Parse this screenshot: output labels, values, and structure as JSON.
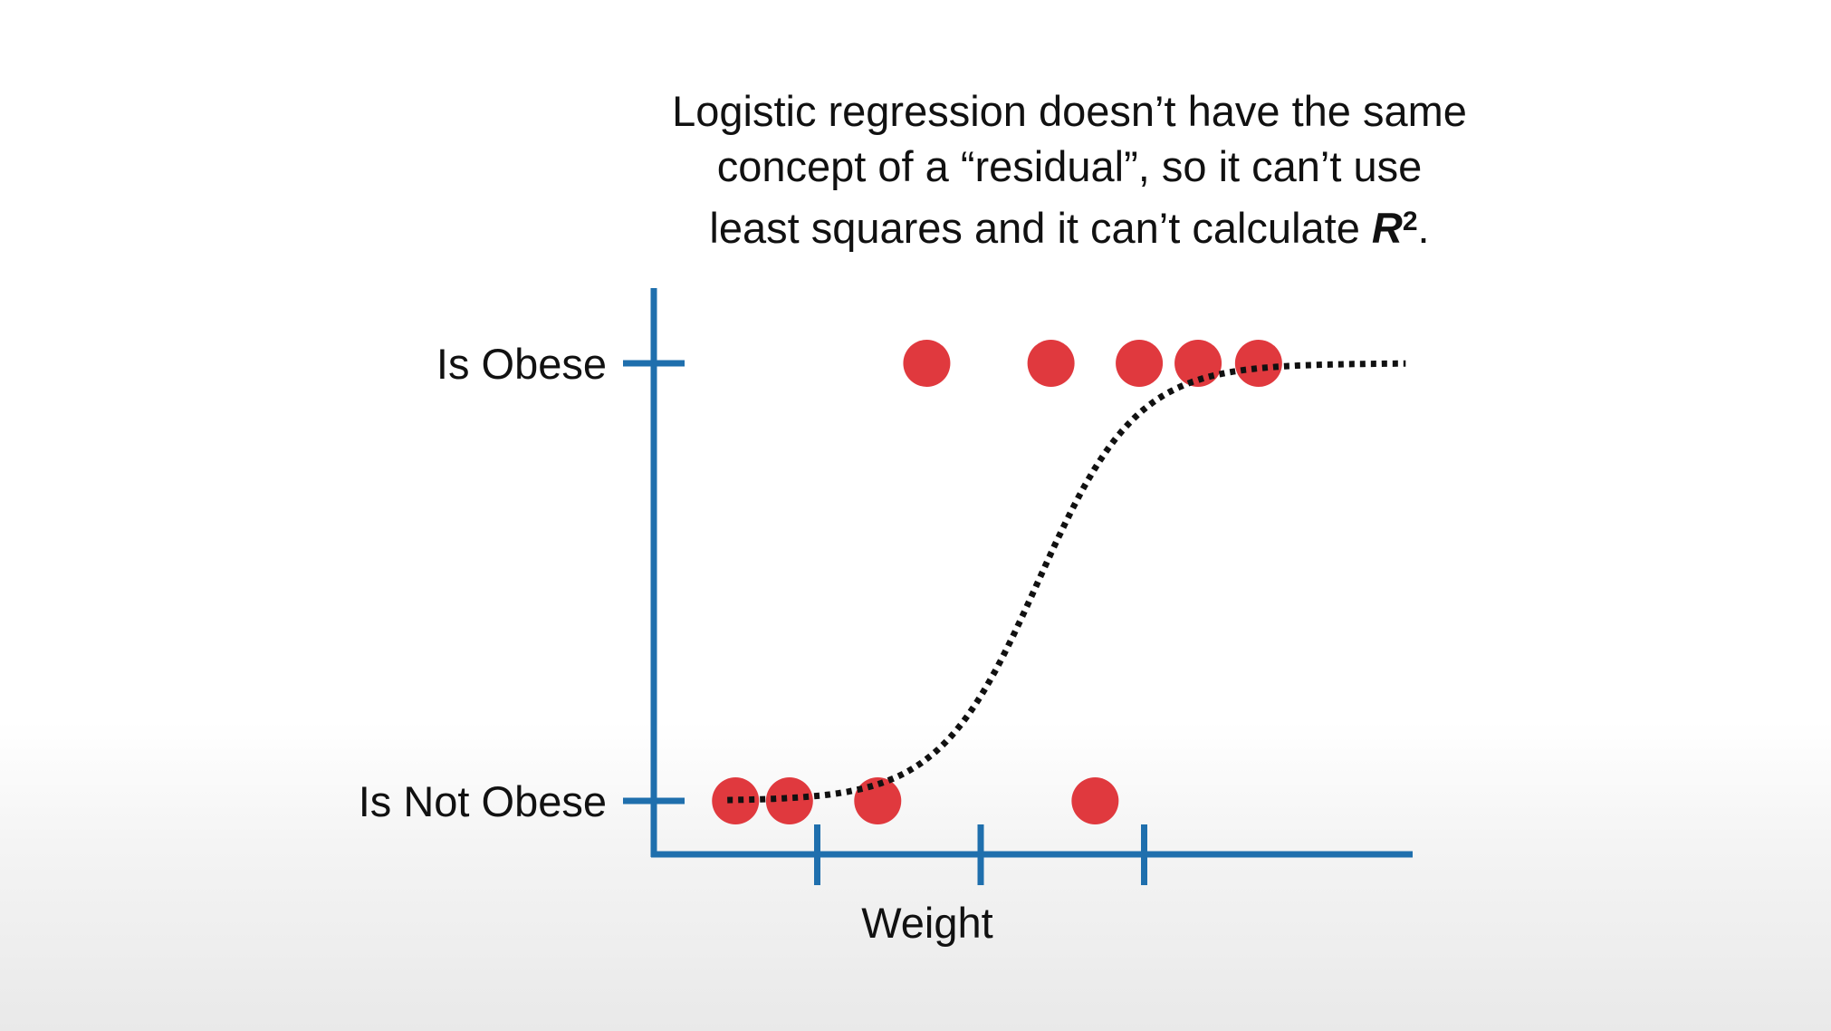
{
  "caption": {
    "line1": "Logistic regression doesn’t have the same",
    "line2": "concept of a “residual”, so it can’t use",
    "line3_pre": "least squares and it can’t calculate ",
    "line3_symbol": "R",
    "line3_superscript": "2",
    "line3_post": "."
  },
  "chart_data": {
    "type": "scatter",
    "xlabel": "Weight",
    "ylabel": "",
    "y_categories": [
      "Is Not Obese",
      "Is Obese"
    ],
    "ylim": [
      0,
      1
    ],
    "xlim": [
      0,
      6
    ],
    "x_ticks": [
      1,
      2,
      3
    ],
    "grid": false,
    "series": [
      {
        "color": "#e0393e",
        "points": [
          {
            "x": 0.5,
            "y": 0
          },
          {
            "x": 0.83,
            "y": 0
          },
          {
            "x": 1.37,
            "y": 0
          },
          {
            "x": 2.7,
            "y": 0
          },
          {
            "x": 1.67,
            "y": 1
          },
          {
            "x": 2.43,
            "y": 1
          },
          {
            "x": 2.97,
            "y": 1
          },
          {
            "x": 3.33,
            "y": 1
          },
          {
            "x": 3.7,
            "y": 1
          }
        ]
      }
    ],
    "curve": {
      "kind": "logistic",
      "style": "dotted",
      "color": "#111111",
      "x_start": 0.45,
      "x_end": 4.6,
      "midpoint": 2.35,
      "steepness": 3.3
    },
    "axis_color": "#1f6fad"
  }
}
